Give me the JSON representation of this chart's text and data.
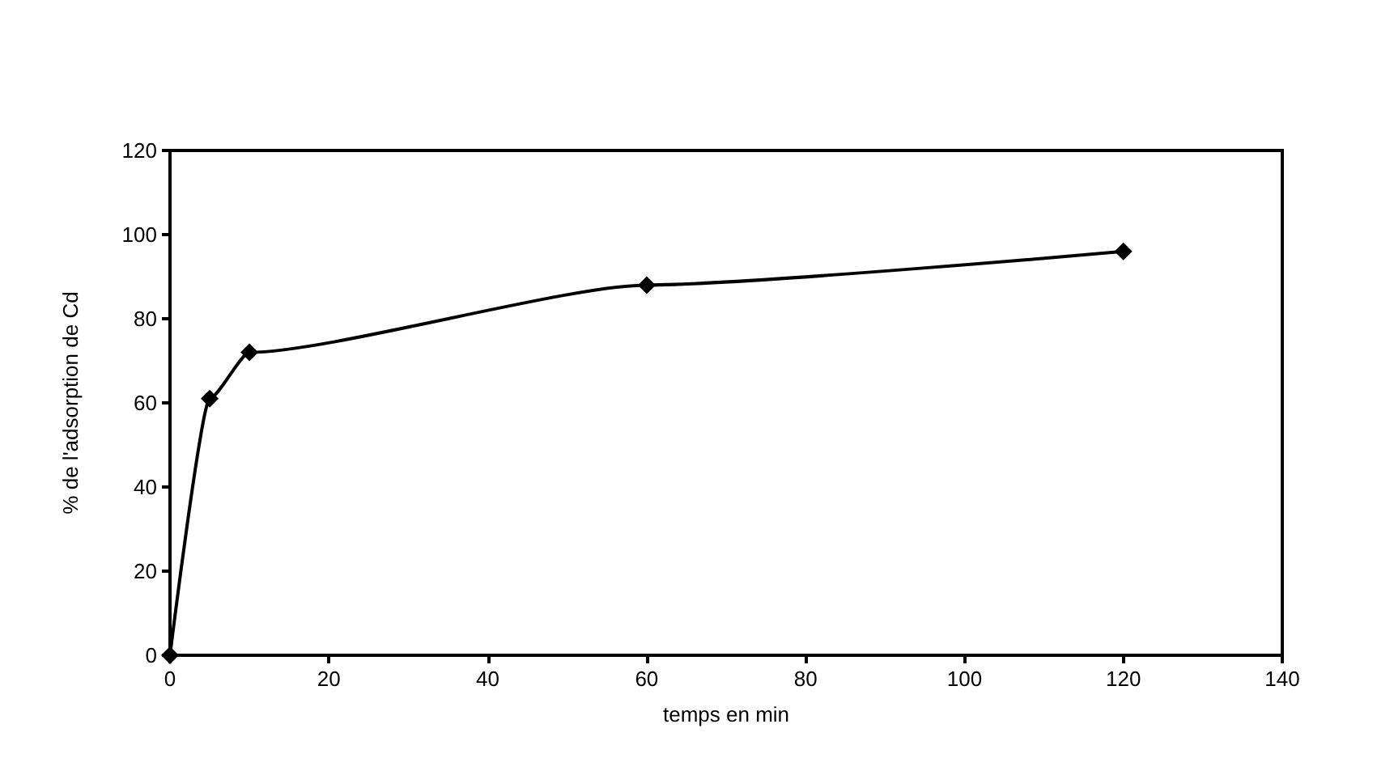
{
  "chart_data": {
    "type": "line",
    "xlabel": "temps en min",
    "ylabel": "% de l'adsorption de Cd",
    "x": [
      0,
      5,
      10,
      60,
      120
    ],
    "series": [
      {
        "color": "#000000",
        "values": [
          0,
          61,
          72,
          88,
          96
        ]
      }
    ],
    "xlim": [
      0,
      140
    ],
    "xticks": [
      0,
      20,
      40,
      60,
      80,
      100,
      120,
      140
    ],
    "ylim": [
      0,
      120
    ],
    "yticks": [
      0,
      20,
      40,
      60,
      80,
      100,
      120
    ],
    "grid": false,
    "marker": "diamond",
    "line_style": "solid"
  }
}
